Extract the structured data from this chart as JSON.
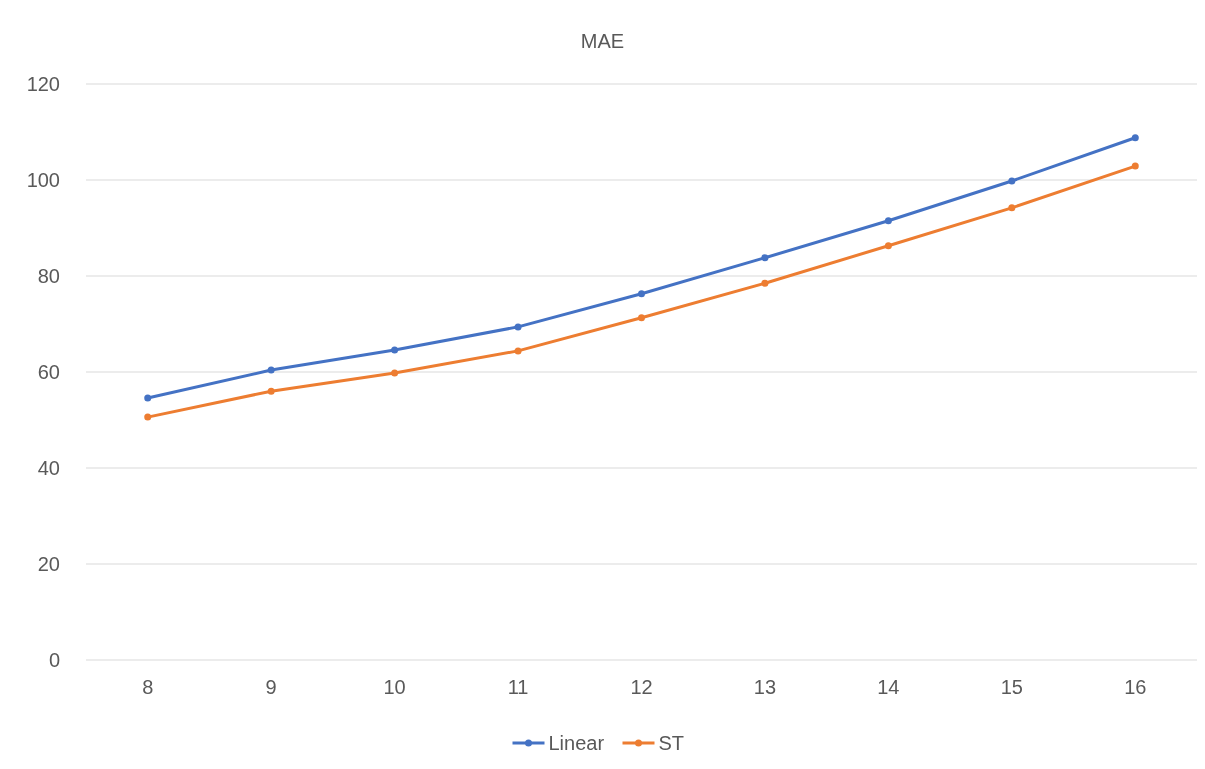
{
  "chart_data": {
    "type": "line",
    "title": "MAE",
    "categories": [
      "8",
      "9",
      "10",
      "11",
      "12",
      "13",
      "14",
      "15",
      "16"
    ],
    "series": [
      {
        "name": "Linear",
        "color": "#4472c4",
        "values": [
          54.6,
          60.4,
          64.6,
          69.4,
          76.3,
          83.8,
          91.5,
          99.8,
          108.8
        ]
      },
      {
        "name": "ST",
        "color": "#ed7d31",
        "values": [
          50.6,
          56.0,
          59.8,
          64.4,
          71.3,
          78.5,
          86.3,
          94.2,
          102.9
        ]
      }
    ],
    "ylim": [
      0,
      120
    ],
    "yticks": [
      0,
      20,
      40,
      60,
      80,
      100,
      120
    ],
    "grid": "y",
    "legend": "bottom",
    "marker": "circle",
    "line_style": "solid"
  }
}
